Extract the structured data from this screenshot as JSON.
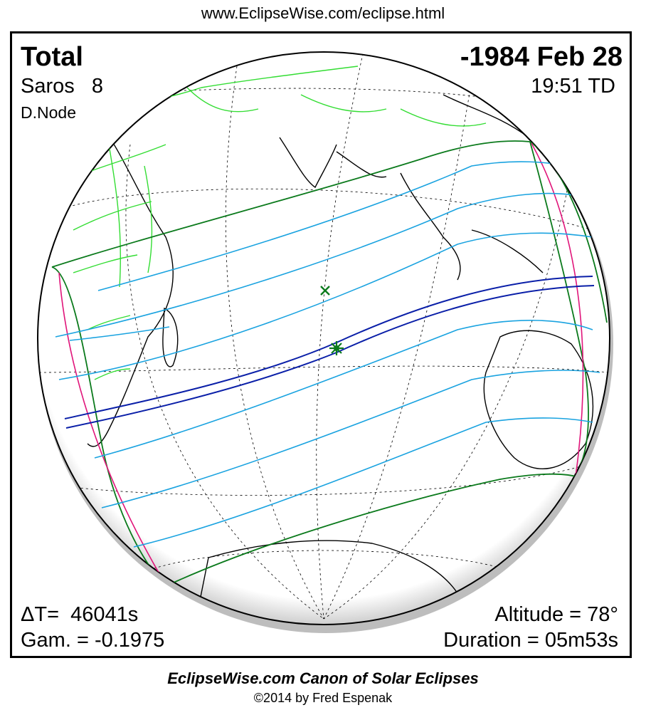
{
  "header_url": "www.EclipseWise.com/eclipse.html",
  "eclipse": {
    "type": "Total",
    "date": "-1984 Feb 28",
    "saros": "Saros   8",
    "time": "19:51 TD",
    "node": "D.Node",
    "delta_t": "ΔT=  46041s",
    "gamma": "Gam. = -0.1975",
    "altitude": "Altitude = 78°",
    "duration": "Duration = 05m53s"
  },
  "footer": {
    "title": "EclipseWise.com Canon of Solar Eclipses",
    "copyright": "©2014 by Fred Espenak"
  },
  "colors": {
    "umbral_path": "#0a1fa8",
    "penumbral_lines": "#1aa3e0",
    "penumbral_limits": "#0b7a1c",
    "rise_set_curves": "#e0157a",
    "borders": "#33dd33",
    "coastlines": "#000000",
    "graticule": "#000000"
  },
  "markers": {
    "greatest_eclipse": "green-asterisk-icon",
    "sub_solar_point": "green-x-icon"
  }
}
